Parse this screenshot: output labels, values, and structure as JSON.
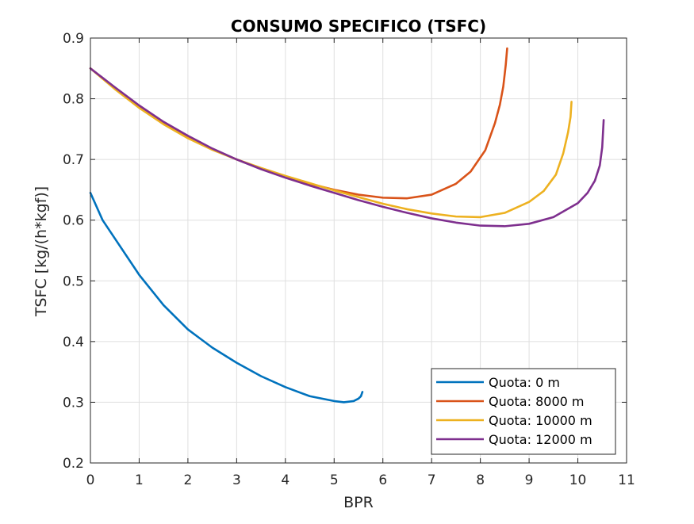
{
  "chart_data": {
    "type": "line",
    "title": "CONSUMO SPECIFICO (TSFC)",
    "xlabel": "BPR",
    "ylabel": "TSFC [kg/(h*kgf)]",
    "xlim": [
      0,
      11
    ],
    "ylim": [
      0.2,
      0.9
    ],
    "x_ticks": [
      0,
      1,
      2,
      3,
      4,
      5,
      6,
      7,
      8,
      9,
      10,
      11
    ],
    "y_ticks": [
      0.2,
      0.3,
      0.4,
      0.5,
      0.6,
      0.7,
      0.8,
      0.9
    ],
    "grid": true,
    "legend_position": "bottom-right",
    "series": [
      {
        "name": "Quota: 0 m",
        "color": "#0072BD",
        "x": [
          0,
          0.25,
          0.5,
          1,
          1.5,
          2,
          2.5,
          3,
          3.5,
          4,
          4.5,
          5,
          5.2,
          5.4,
          5.5,
          5.55,
          5.58
        ],
        "y": [
          0.645,
          0.6,
          0.57,
          0.51,
          0.46,
          0.42,
          0.39,
          0.365,
          0.343,
          0.325,
          0.31,
          0.302,
          0.3,
          0.302,
          0.306,
          0.31,
          0.317
        ]
      },
      {
        "name": "Quota: 8000 m",
        "color": "#D95319",
        "x": [
          0,
          0.5,
          1,
          1.5,
          2,
          2.5,
          3,
          3.5,
          4,
          4.5,
          5,
          5.5,
          6,
          6.5,
          7,
          7.5,
          7.8,
          8.1,
          8.3,
          8.4,
          8.47,
          8.52,
          8.55
        ],
        "y": [
          0.85,
          0.818,
          0.787,
          0.76,
          0.737,
          0.717,
          0.7,
          0.685,
          0.672,
          0.66,
          0.65,
          0.642,
          0.637,
          0.636,
          0.642,
          0.66,
          0.68,
          0.715,
          0.76,
          0.79,
          0.82,
          0.855,
          0.883
        ]
      },
      {
        "name": "Quota: 10000 m",
        "color": "#EDB120",
        "x": [
          0,
          0.5,
          1,
          1.5,
          2,
          2.5,
          3,
          3.5,
          4,
          4.5,
          5,
          5.5,
          6,
          6.5,
          7,
          7.5,
          8,
          8.5,
          9,
          9.3,
          9.55,
          9.7,
          9.8,
          9.85,
          9.87
        ],
        "y": [
          0.85,
          0.816,
          0.785,
          0.758,
          0.735,
          0.716,
          0.7,
          0.686,
          0.673,
          0.661,
          0.649,
          0.638,
          0.627,
          0.618,
          0.611,
          0.606,
          0.605,
          0.612,
          0.63,
          0.648,
          0.675,
          0.71,
          0.745,
          0.77,
          0.795
        ]
      },
      {
        "name": "Quota: 12000 m",
        "color": "#7E2F8E",
        "x": [
          0,
          0.5,
          1,
          1.5,
          2,
          2.5,
          3,
          3.5,
          4,
          4.5,
          5,
          5.5,
          6,
          6.5,
          7,
          7.5,
          8,
          8.5,
          9,
          9.5,
          10,
          10.2,
          10.35,
          10.45,
          10.5,
          10.53
        ],
        "y": [
          0.85,
          0.819,
          0.789,
          0.762,
          0.739,
          0.718,
          0.7,
          0.684,
          0.67,
          0.657,
          0.645,
          0.633,
          0.622,
          0.612,
          0.603,
          0.596,
          0.591,
          0.59,
          0.594,
          0.605,
          0.628,
          0.645,
          0.665,
          0.69,
          0.72,
          0.765
        ]
      }
    ]
  }
}
